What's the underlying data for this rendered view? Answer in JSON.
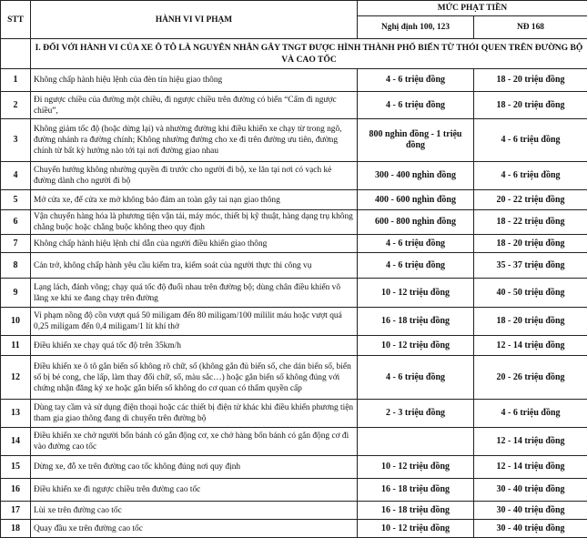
{
  "header": {
    "stt": "STT",
    "behavior": "HÀNH VI VI PHẠM",
    "fine_group": "MỨC PHẠT TIỀN",
    "col_old": "Nghị định 100, 123",
    "col_new": "NĐ 168"
  },
  "section": "I. ĐỐI VỚI HÀNH VI  CỦA XE Ô TÔ LÀ NGUYÊN NHÂN GÂY TNGT ĐƯỢC HÌNH THÀNH PHỔ BIẾN TỪ THÓI QUEN TRÊN ĐƯỜNG BỘ VÀ CAO TỐC",
  "rows": [
    {
      "stt": "1",
      "desc": "Không chấp hành hiệu lệnh của đèn tín hiệu giao thông",
      "old": "4 - 6 triệu đồng",
      "new": "18 - 20 triệu đồng"
    },
    {
      "stt": "2",
      "desc": "Đi ngược chiều của đường một chiều, đi ngược chiều trên đường có biển “Cấm đi ngược chiều”,",
      "old": "4 - 6 triệu đồng",
      "new": "18 - 20 triệu đồng"
    },
    {
      "stt": "3",
      "desc": "Không giảm tốc độ (hoặc dừng lại) và nhường đường khi điều khiển xe chạy từ trong ngõ, đường nhánh ra đường chính; Không nhường đường cho xe đi trên đường ưu tiên, đường chính từ bất kỳ hướng nào tới tại nơi đường giao nhau",
      "old": "800 nghìn đồng - 1 triệu đồng",
      "new": "4 - 6 triệu đồng"
    },
    {
      "stt": "4",
      "desc": "Chuyển hướng không nhường quyền đi trước cho người đi bộ, xe lăn tại nơi có vạch kẻ đường dành cho người đi bộ",
      "old": "300 - 400 nghìn đồng",
      "new": "4 - 6 triệu đồng"
    },
    {
      "stt": "5",
      "desc": "Mở cửa xe, để cửa xe mở không bảo đảm an toàn gây tai nạn giao thông",
      "old": "400 - 600 nghìn đồng",
      "new": "20 - 22 triệu đồng"
    },
    {
      "stt": "6",
      "desc": "Vận chuyển hàng hóa là phương tiện vận tải, máy móc, thiết bị kỹ thuật, hàng dạng trụ không chằng buộc hoặc chằng buộc không theo quy định",
      "old": "600 - 800 nghìn đồng",
      "new": "18 - 22 triệu đồng"
    },
    {
      "stt": "7",
      "desc": "Không chấp hành hiệu lệnh chỉ dẫn của người điều khiển giao thông",
      "old": "4 - 6 triệu đồng",
      "new": "18 - 20 triệu đồng"
    },
    {
      "stt": "8",
      "desc": "Cản trở, không chấp hành yêu cầu kiểm tra, kiểm soát của người thực thi công vụ",
      "old": "4 - 6 triệu đồng",
      "new": "35 - 37 triệu đồng"
    },
    {
      "stt": "9",
      "desc": "Lạng lách, đánh võng; chạy quá tốc độ đuổi nhau trên đường bộ; dùng chân điều khiển vô lăng xe khi xe đang chạy trên đường",
      "old": "10 - 12 triệu đồng",
      "new": "40  - 50 triệu đồng"
    },
    {
      "stt": "10",
      "desc": "Vi phạm nồng độ cồn vượt quá 50 miligam đến 80 miligam/100 mililit máu hoặc vượt quá 0,25 miligam đến 0,4 miligam/1 lít khí thở",
      "old": "16 - 18 triệu đồng",
      "new": "18 - 20 triệu đồng"
    },
    {
      "stt": "11",
      "desc": "Điều khiển xe chạy quá tốc độ trên 35km/h",
      "old": "10 - 12 triệu đồng",
      "new": "12 - 14 triệu đồng"
    },
    {
      "stt": "12",
      "desc": "Điều khiển xe ô tô gắn biển số không rõ chữ, số (không gắn đủ biển số, che dán biển số, biển số bị bẻ cong, che lấp, làm thay đổi chữ, số, màu sắc…) hoặc gắn biển số không đúng với chứng nhận đăng ký xe hoặc gắn biển số không do cơ quan có thẩm quyền cấp",
      "old": "4 - 6 triệu đồng",
      "new": "20 - 26 triệu đồng"
    },
    {
      "stt": "13",
      "desc": "Dùng tay cầm và sử dụng điện thoại hoặc các thiết bị điện tử khác khi điều khiển phương tiện tham gia giao thông đang di chuyển trên đường bộ",
      "old": "2 - 3 triệu đồng",
      "new": "4 - 6 triệu đồng"
    },
    {
      "stt": "14",
      "desc": "Điều khiển xe chở người bốn bánh có gắn động cơ, xe chở hàng bốn bánh có gắn động cơ đi vào đường cao tốc",
      "old": "",
      "new": "12 - 14 triệu đồng"
    },
    {
      "stt": "15",
      "desc": "Dừng xe, đỗ xe trên đường cao tốc không đúng nơi quy định",
      "old": "10 - 12 triệu đồng",
      "new": "12 - 14 triệu đồng"
    },
    {
      "stt": "16",
      "desc": "Điều khiển xe đi ngược chiều trên đường cao tốc",
      "old": "16 - 18 triệu đồng",
      "new": "30 - 40 triệu đồng"
    },
    {
      "stt": "17",
      "desc": "Lùi xe trên đường cao tốc",
      "old": "16 - 18 triệu đồng",
      "new": "30 - 40 triệu đồng"
    },
    {
      "stt": "18",
      "desc": "Quay đầu xe trên đường cao tốc",
      "old": "10 - 12 triệu đồng",
      "new": "30 - 40 triệu đồng"
    }
  ]
}
